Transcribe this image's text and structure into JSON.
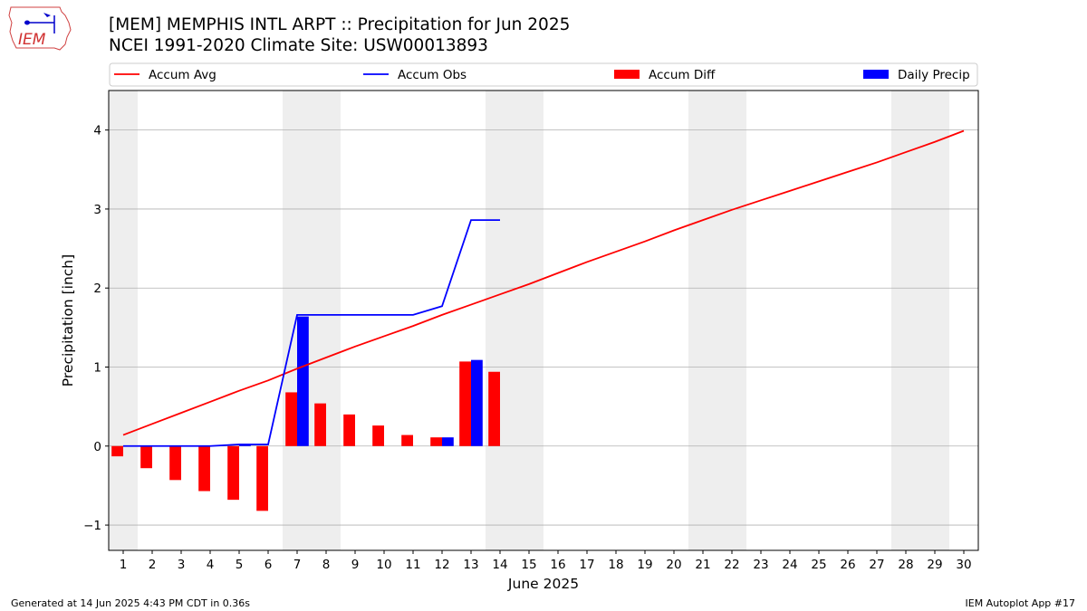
{
  "header": {
    "title_line1": "[MEM] MEMPHIS INTL ARPT :: Precipitation for Jun 2025",
    "title_line2": "NCEI 1991-2020 Climate Site: USW00013893",
    "logo_text": "IEM"
  },
  "footer": {
    "generated": "Generated at 14 Jun 2025 4:43 PM CDT in 0.36s",
    "app": "IEM Autoplot App #17"
  },
  "colors": {
    "avg": "#ff0000",
    "obs": "#0000ff",
    "diff": "#ff0000",
    "daily": "#0000ff",
    "weekend_shade": "#eeeeee",
    "grid": "#b0b0b0"
  },
  "chart_data": {
    "type": "bar",
    "xlabel": "June 2025",
    "ylabel": "Precipitation [inch]",
    "xlim": [
      0.5,
      30.5
    ],
    "ylim": [
      -1.32,
      4.5
    ],
    "yticks": [
      -1,
      0,
      1,
      2,
      3,
      4
    ],
    "ytick_labels": [
      "−1",
      "0",
      "1",
      "2",
      "3",
      "4"
    ],
    "days": [
      1,
      2,
      3,
      4,
      5,
      6,
      7,
      8,
      9,
      10,
      11,
      12,
      13,
      14,
      15,
      16,
      17,
      18,
      19,
      20,
      21,
      22,
      23,
      24,
      25,
      26,
      27,
      28,
      29,
      30
    ],
    "weekend_days": [
      1,
      7,
      8,
      14,
      15,
      21,
      22,
      28,
      29
    ],
    "grid": true,
    "legend_position": "top",
    "series": [
      {
        "name": "Accum Avg",
        "kind": "line",
        "days": [
          1,
          2,
          3,
          4,
          5,
          6,
          7,
          8,
          9,
          10,
          11,
          12,
          13,
          14,
          15,
          16,
          17,
          18,
          19,
          20,
          21,
          22,
          23,
          24,
          25,
          26,
          27,
          28,
          29,
          30
        ],
        "values": [
          0.14,
          0.28,
          0.42,
          0.56,
          0.7,
          0.83,
          0.98,
          1.12,
          1.26,
          1.39,
          1.52,
          1.66,
          1.79,
          1.92,
          2.05,
          2.19,
          2.33,
          2.46,
          2.59,
          2.73,
          2.86,
          2.99,
          3.11,
          3.23,
          3.35,
          3.47,
          3.59,
          3.72,
          3.85,
          3.99
        ]
      },
      {
        "name": "Accum Obs",
        "kind": "line",
        "days": [
          1,
          2,
          3,
          4,
          5,
          6,
          7,
          8,
          9,
          10,
          11,
          12,
          13,
          14
        ],
        "values": [
          0.0,
          0.0,
          0.0,
          0.0,
          0.02,
          0.02,
          1.66,
          1.66,
          1.66,
          1.66,
          1.66,
          1.77,
          2.86,
          2.86
        ]
      },
      {
        "name": "Accum Diff",
        "kind": "bar",
        "days": [
          1,
          2,
          3,
          4,
          5,
          6,
          7,
          8,
          9,
          10,
          11,
          12,
          13,
          14
        ],
        "values": [
          -0.13,
          -0.28,
          -0.43,
          -0.57,
          -0.68,
          -0.82,
          0.68,
          0.54,
          0.4,
          0.26,
          0.14,
          0.11,
          1.07,
          0.94
        ]
      },
      {
        "name": "Daily Precip",
        "kind": "bar",
        "days": [
          1,
          2,
          3,
          4,
          5,
          6,
          7,
          8,
          9,
          10,
          11,
          12,
          13,
          14
        ],
        "values": [
          0,
          0,
          0,
          0,
          0.02,
          0,
          1.64,
          0,
          0,
          0,
          0,
          0.11,
          1.09,
          0
        ]
      }
    ]
  }
}
